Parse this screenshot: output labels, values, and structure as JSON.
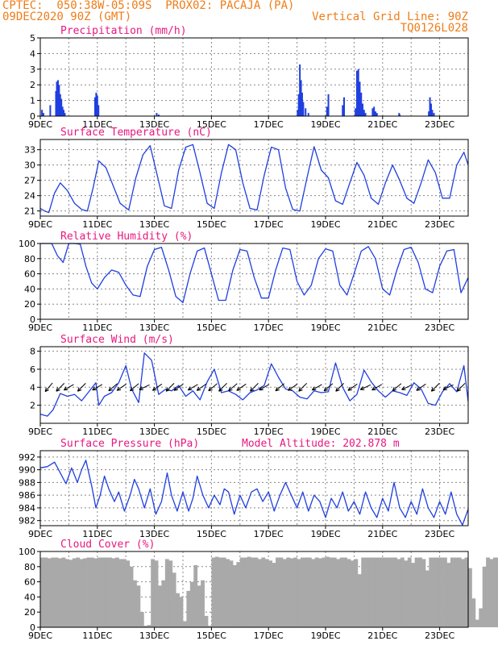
{
  "header": {
    "line1_left": "CPTEC:  050:38W-05:09S  PROX02: PACAJA (PA)",
    "line2_left": "09DEC2020 90Z (GMT)",
    "line2_right": "Vertical Grid Line: 90Z",
    "line3_right": "TQ0126L028",
    "color": "#ee7d1a",
    "title_color": "#e8177f",
    "series_color": "#1f3fe0",
    "cloud_color": "#a9a9a9"
  },
  "x_tick_labels": [
    "9DEC",
    "11DEC",
    "13DEC",
    "15DEC",
    "17DEC",
    "19DEC",
    "21DEC",
    "23DEC"
  ],
  "chart_data": [
    {
      "type": "bar",
      "title": "Precipitation (mm/h)",
      "xlim": [
        0,
        15
      ],
      "ylim": [
        0,
        5
      ],
      "yticks": [
        0,
        1,
        2,
        3,
        4,
        5
      ],
      "grid": true,
      "x": [
        0.06,
        0.11,
        0.35,
        0.55,
        0.58,
        0.62,
        0.66,
        0.7,
        0.74,
        0.78,
        0.82,
        0.86,
        1.92,
        1.96,
        2.0,
        2.04,
        4.08,
        4.15,
        9.02,
        9.06,
        9.1,
        9.14,
        9.18,
        9.22,
        9.3,
        9.4,
        10.05,
        10.1,
        10.6,
        10.65,
        11.05,
        11.1,
        11.15,
        11.2,
        11.25,
        11.3,
        11.35,
        11.4,
        11.65,
        11.7,
        11.75,
        11.8,
        12.58,
        12.6,
        13.62,
        13.66,
        13.7,
        13.74,
        13.8
      ],
      "values": [
        0.4,
        0.2,
        0.7,
        1.6,
        2.2,
        2.3,
        2.0,
        1.4,
        1.1,
        0.6,
        0.4,
        0.2,
        1.2,
        1.5,
        1.3,
        0.7,
        0.2,
        0.1,
        0.4,
        1.4,
        3.3,
        2.3,
        1.5,
        0.9,
        0.5,
        0.2,
        0.6,
        1.4,
        0.7,
        1.2,
        0.5,
        2.9,
        3.0,
        2.2,
        1.5,
        0.8,
        0.4,
        0.2,
        0.5,
        0.6,
        0.3,
        0.2,
        0.2,
        0.1,
        0.3,
        1.2,
        0.8,
        0.4,
        0.2
      ],
      "xlabel": "",
      "ylabel": ""
    },
    {
      "type": "line",
      "title": "Surface Temperature (nC)",
      "xlim": [
        0,
        15
      ],
      "ylim": [
        20,
        35
      ],
      "yticks": [
        21,
        24,
        27,
        30,
        33
      ],
      "grid": true,
      "x": [
        0,
        0.15,
        0.3,
        0.5,
        0.7,
        0.95,
        1.2,
        1.45,
        1.65,
        1.85,
        2.05,
        2.3,
        2.55,
        2.8,
        3.1,
        3.35,
        3.6,
        3.85,
        4.1,
        4.35,
        4.6,
        4.85,
        5.1,
        5.35,
        5.6,
        5.85,
        6.1,
        6.35,
        6.6,
        6.85,
        7.1,
        7.35,
        7.6,
        7.85,
        8.1,
        8.35,
        8.6,
        8.85,
        9.1,
        9.35,
        9.6,
        9.85,
        10.1,
        10.35,
        10.6,
        10.85,
        11.1,
        11.35,
        11.6,
        11.85,
        12.1,
        12.35,
        12.6,
        12.85,
        13.1,
        13.35,
        13.6,
        13.85,
        14.1,
        14.35,
        14.6,
        14.85,
        15
      ],
      "values": [
        21.5,
        21.0,
        20.7,
        24.5,
        26.5,
        25.0,
        22.5,
        21.3,
        21.0,
        25.5,
        30.8,
        29.5,
        26.0,
        22.5,
        21.2,
        27.5,
        32.0,
        33.8,
        28.0,
        22.0,
        21.5,
        29.0,
        33.5,
        34.0,
        28.5,
        22.5,
        21.5,
        28.5,
        34.0,
        33.0,
        26.5,
        21.5,
        21.2,
        28.0,
        33.5,
        33.0,
        25.5,
        21.3,
        21.0,
        27.5,
        33.6,
        29.0,
        27.5,
        23.0,
        22.3,
        26.5,
        30.5,
        28.0,
        23.5,
        22.3,
        26.5,
        30.0,
        27.0,
        23.5,
        22.5,
        26.5,
        31.0,
        28.5,
        23.5,
        23.5,
        30.0,
        32.5,
        30.0
      ],
      "xlabel": "",
      "ylabel": ""
    },
    {
      "type": "line",
      "title": "Relative Humidity (%)",
      "xlim": [
        0,
        15
      ],
      "ylim": [
        0,
        100
      ],
      "yticks": [
        0,
        20,
        40,
        60,
        80,
        100
      ],
      "grid": true,
      "x": [
        0,
        0.2,
        0.4,
        0.6,
        0.8,
        1.0,
        1.2,
        1.4,
        1.6,
        1.8,
        2.0,
        2.25,
        2.5,
        2.75,
        3.0,
        3.25,
        3.5,
        3.75,
        4.0,
        4.25,
        4.5,
        4.75,
        5.0,
        5.25,
        5.5,
        5.75,
        6.0,
        6.25,
        6.5,
        6.75,
        7.0,
        7.25,
        7.5,
        7.75,
        8.0,
        8.25,
        8.5,
        8.75,
        9.0,
        9.25,
        9.5,
        9.75,
        10.0,
        10.25,
        10.5,
        10.75,
        11.0,
        11.25,
        11.5,
        11.75,
        12.0,
        12.25,
        12.5,
        12.75,
        13.0,
        13.25,
        13.5,
        13.75,
        14.0,
        14.25,
        14.5,
        14.75,
        15
      ],
      "values": [
        100,
        100,
        100,
        84,
        75,
        100,
        100,
        99,
        70,
        48,
        40,
        55,
        65,
        62,
        45,
        32,
        30,
        70,
        92,
        95,
        65,
        30,
        22,
        60,
        90,
        94,
        60,
        25,
        25,
        65,
        92,
        90,
        55,
        28,
        28,
        65,
        94,
        92,
        50,
        32,
        45,
        80,
        93,
        90,
        45,
        32,
        60,
        90,
        96,
        80,
        40,
        32,
        65,
        92,
        95,
        75,
        40,
        35,
        70,
        90,
        92,
        35,
        55
      ],
      "xlabel": "",
      "ylabel": ""
    },
    {
      "type": "line",
      "title": "Surface Wind (m/s)",
      "xlim": [
        0,
        15
      ],
      "ylim": [
        0,
        8.5
      ],
      "yticks": [
        2,
        4,
        6,
        8
      ],
      "grid": true,
      "x": [
        0,
        0.25,
        0.45,
        0.7,
        0.95,
        1.2,
        1.45,
        1.7,
        1.95,
        2.05,
        2.25,
        2.5,
        2.75,
        3.0,
        3.2,
        3.45,
        3.65,
        3.9,
        4.15,
        4.4,
        4.6,
        4.85,
        5.1,
        5.35,
        5.6,
        5.85,
        6.1,
        6.35,
        6.6,
        6.85,
        7.1,
        7.35,
        7.6,
        7.85,
        8.1,
        8.35,
        8.6,
        8.85,
        9.1,
        9.35,
        9.6,
        9.85,
        10.1,
        10.35,
        10.6,
        10.85,
        11.1,
        11.35,
        11.6,
        11.85,
        12.1,
        12.35,
        12.6,
        12.85,
        13.1,
        13.35,
        13.6,
        13.85,
        14.1,
        14.35,
        14.6,
        14.85,
        15
      ],
      "values": [
        1.0,
        0.8,
        1.5,
        3.3,
        3.0,
        3.2,
        2.5,
        3.5,
        4.5,
        2.0,
        3.0,
        3.4,
        4.5,
        6.4,
        3.8,
        2.3,
        7.8,
        7.0,
        3.2,
        3.8,
        3.6,
        4.2,
        3.0,
        3.6,
        2.6,
        4.6,
        6.0,
        3.4,
        3.6,
        3.2,
        2.6,
        3.4,
        3.7,
        4.2,
        6.6,
        5.1,
        3.8,
        3.6,
        2.9,
        2.7,
        3.6,
        3.4,
        3.5,
        6.7,
        4.0,
        2.5,
        3.2,
        5.9,
        4.6,
        3.6,
        2.9,
        3.6,
        3.4,
        3.1,
        4.5,
        3.8,
        2.2,
        2.0,
        3.5,
        4.4,
        3.5,
        6.4,
        2.4
      ],
      "arrows_x": [
        0.3,
        0.7,
        1.0,
        1.45,
        2.0,
        2.55,
        2.85,
        3.3,
        3.65,
        4.1,
        4.55,
        4.85,
        5.35,
        5.65,
        6.05,
        6.4,
        6.75,
        7.05,
        7.5,
        7.85,
        8.4,
        8.85,
        9.2,
        9.7,
        10.1,
        10.5,
        10.95,
        11.4,
        11.8,
        12.5,
        12.85,
        13.35,
        13.85,
        14.3,
        14.75
      ],
      "arrows_deg": [
        230,
        225,
        210,
        225,
        210,
        220,
        215,
        220,
        205,
        215,
        225,
        215,
        210,
        215,
        220,
        225,
        220,
        215,
        225,
        210,
        220,
        215,
        225,
        210,
        220,
        225,
        215,
        205,
        210,
        220,
        205,
        215,
        225,
        205,
        225
      ],
      "xlabel": "",
      "ylabel": ""
    },
    {
      "type": "line",
      "title": "Surface Pressure (hPa)",
      "annotation": "Model Altitude: 202.878  m",
      "xlim": [
        0,
        15
      ],
      "ylim": [
        981.2,
        993
      ],
      "yticks": [
        982,
        984,
        986,
        988,
        990,
        992
      ],
      "grid": true,
      "x": [
        0,
        0.25,
        0.5,
        0.7,
        0.9,
        1.1,
        1.3,
        1.45,
        1.6,
        1.8,
        1.95,
        2.1,
        2.25,
        2.4,
        2.6,
        2.75,
        2.95,
        3.15,
        3.3,
        3.45,
        3.65,
        3.85,
        4.05,
        4.25,
        4.45,
        4.6,
        4.8,
        5.0,
        5.2,
        5.35,
        5.5,
        5.7,
        5.9,
        6.1,
        6.3,
        6.45,
        6.6,
        6.8,
        7.0,
        7.2,
        7.4,
        7.6,
        7.8,
        8.0,
        8.2,
        8.4,
        8.6,
        8.8,
        9.0,
        9.2,
        9.4,
        9.6,
        9.8,
        10.0,
        10.2,
        10.4,
        10.6,
        10.8,
        11.0,
        11.2,
        11.4,
        11.6,
        11.8,
        12.0,
        12.2,
        12.4,
        12.6,
        12.8,
        13.0,
        13.2,
        13.4,
        13.6,
        13.8,
        14.0,
        14.2,
        14.4,
        14.6,
        14.8,
        15
      ],
      "values": [
        990.3,
        990.5,
        991.2,
        989.5,
        987.8,
        990.3,
        988.0,
        990.0,
        991.5,
        987.5,
        984.0,
        986.0,
        989.0,
        987.0,
        985.0,
        986.5,
        983.5,
        986.0,
        988.5,
        987.0,
        984.0,
        987.0,
        983.0,
        985.0,
        989.5,
        986.0,
        983.5,
        986.5,
        983.5,
        985.5,
        989.0,
        986.0,
        984.0,
        986.0,
        984.5,
        987.0,
        986.5,
        983.0,
        986.0,
        984.0,
        986.5,
        987.0,
        985.0,
        986.5,
        983.5,
        986.0,
        988.0,
        986.0,
        984.0,
        986.5,
        983.5,
        986.0,
        985.0,
        982.5,
        985.5,
        984.0,
        986.5,
        983.5,
        985.0,
        983.0,
        986.5,
        984.0,
        982.5,
        985.5,
        983.5,
        988.0,
        984.0,
        982.5,
        985.0,
        983.0,
        987.0,
        984.0,
        982.5,
        985.0,
        983.0,
        986.5,
        983.0,
        981.3,
        983.8
      ],
      "xlabel": "",
      "ylabel": ""
    },
    {
      "type": "bar",
      "title": "Cloud Cover (%)",
      "xlim": [
        0,
        15
      ],
      "ylim": [
        0,
        100
      ],
      "yticks": [
        0,
        20,
        40,
        60,
        80,
        100
      ],
      "grid": true,
      "series_x_start": 0,
      "series_x_step": 0.125,
      "values": [
        92,
        92,
        91,
        92,
        92,
        91,
        92,
        90,
        89,
        91,
        92,
        90,
        91,
        92,
        92,
        91,
        92,
        92,
        92,
        92,
        91,
        92,
        90,
        90,
        88,
        80,
        62,
        55,
        20,
        2,
        3,
        90,
        88,
        55,
        62,
        90,
        88,
        72,
        45,
        40,
        8,
        48,
        60,
        82,
        55,
        62,
        15,
        2,
        92,
        93,
        92,
        92,
        90,
        88,
        82,
        86,
        92,
        92,
        93,
        92,
        92,
        90,
        92,
        90,
        88,
        85,
        92,
        92,
        90,
        92,
        91,
        92,
        90,
        92,
        92,
        92,
        90,
        92,
        91,
        92,
        93,
        92,
        92,
        90,
        92,
        92,
        90,
        88,
        90,
        70,
        92,
        92,
        92,
        92,
        92,
        92,
        92,
        92,
        92,
        92,
        90,
        92,
        88,
        92,
        85,
        92,
        92,
        90,
        75,
        92,
        92,
        92,
        92,
        92,
        85,
        92,
        92,
        92,
        90,
        92,
        78,
        38,
        10,
        25,
        80,
        92,
        90,
        92,
        92,
        93
      ],
      "xlabel": "",
      "ylabel": ""
    }
  ]
}
